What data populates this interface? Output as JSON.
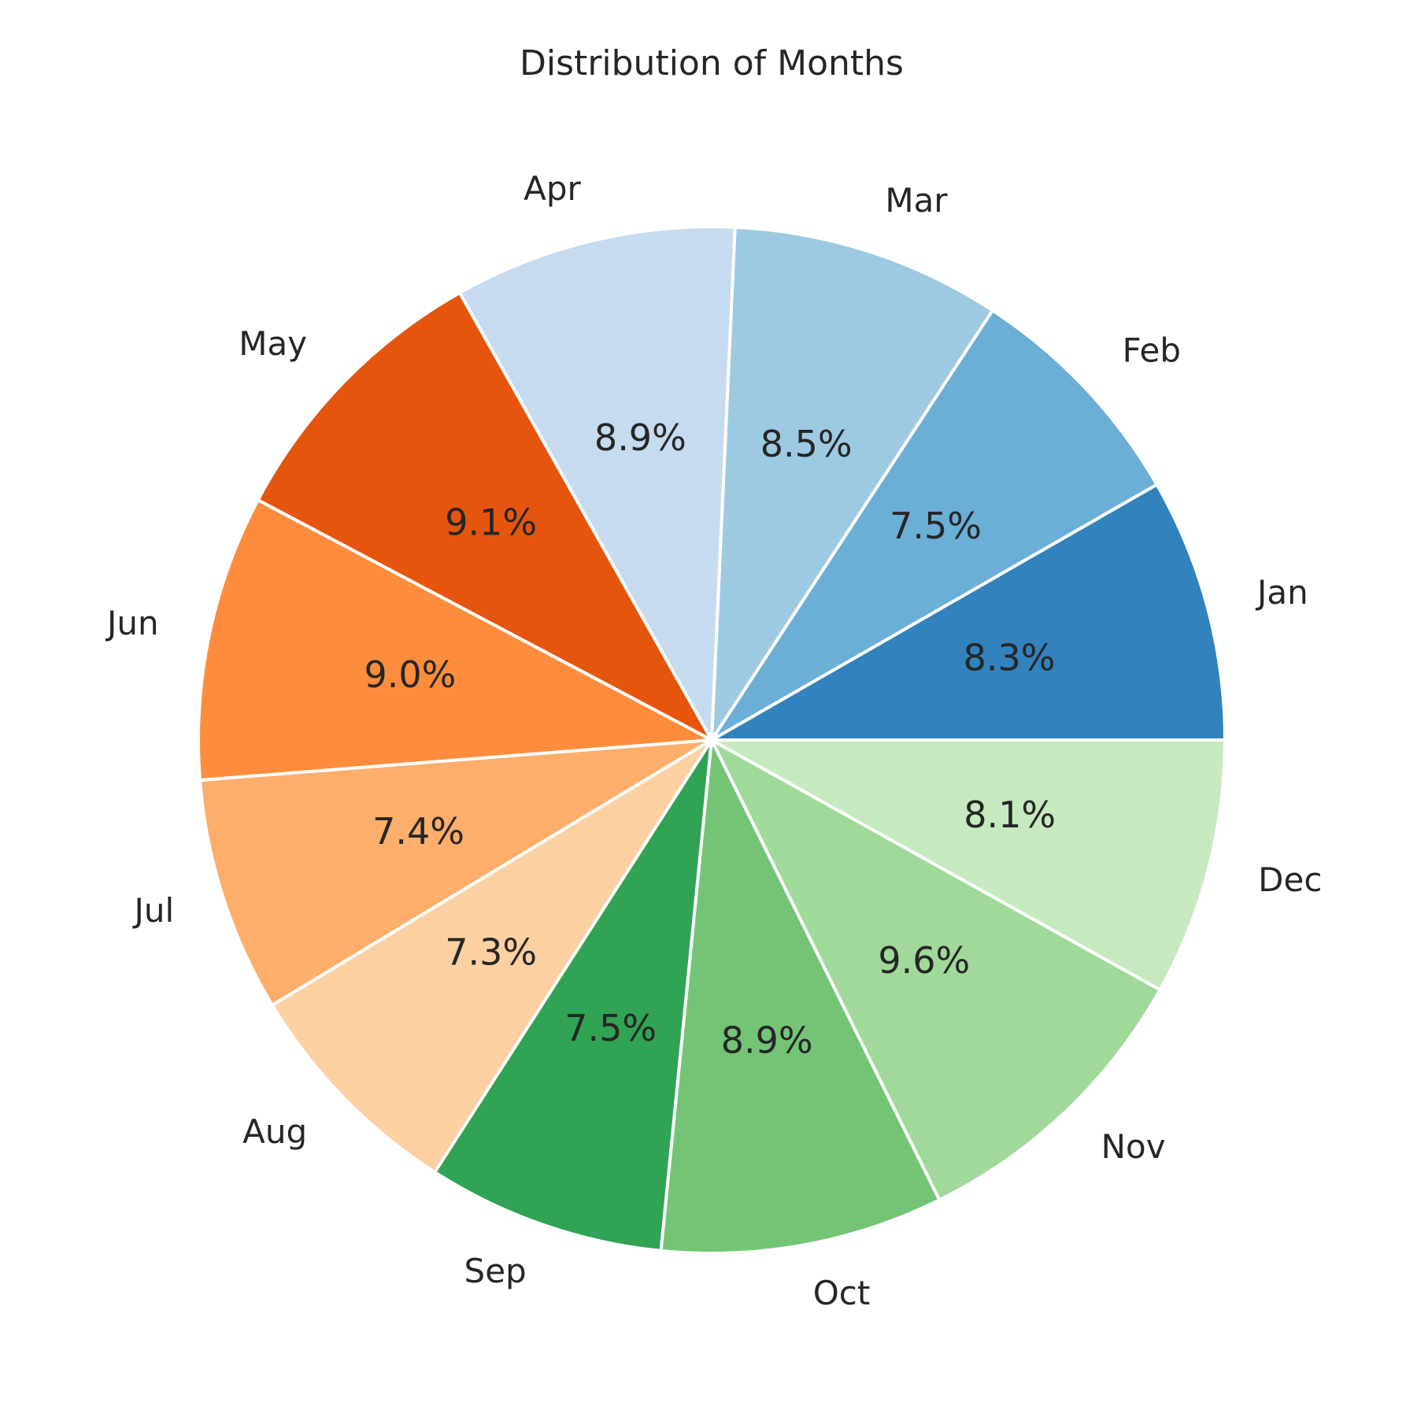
{
  "chart_data": {
    "type": "pie",
    "title": "Distribution of Months",
    "start_angle_deg": 0,
    "direction": "counterclockwise",
    "slices": [
      {
        "label": "Jan",
        "value": 8.3,
        "pct_label": "8.3%",
        "color": "#3182bd"
      },
      {
        "label": "Feb",
        "value": 7.5,
        "pct_label": "7.5%",
        "color": "#6baed6"
      },
      {
        "label": "Mar",
        "value": 8.5,
        "pct_label": "8.5%",
        "color": "#9ecae1"
      },
      {
        "label": "Apr",
        "value": 8.9,
        "pct_label": "8.9%",
        "color": "#c6dbef"
      },
      {
        "label": "May",
        "value": 9.1,
        "pct_label": "9.1%",
        "color": "#e6550d"
      },
      {
        "label": "Jun",
        "value": 9.0,
        "pct_label": "9.0%",
        "color": "#fd8d3c"
      },
      {
        "label": "Jul",
        "value": 7.4,
        "pct_label": "7.4%",
        "color": "#fdae6b"
      },
      {
        "label": "Aug",
        "value": 7.3,
        "pct_label": "7.3%",
        "color": "#fdd0a2"
      },
      {
        "label": "Sep",
        "value": 7.5,
        "pct_label": "7.5%",
        "color": "#31a354"
      },
      {
        "label": "Oct",
        "value": 8.9,
        "pct_label": "8.9%",
        "color": "#74c476"
      },
      {
        "label": "Nov",
        "value": 9.6,
        "pct_label": "9.6%",
        "color": "#a1d99b"
      },
      {
        "label": "Dec",
        "value": 8.1,
        "pct_label": "8.1%",
        "color": "#c7e9c0"
      }
    ]
  }
}
